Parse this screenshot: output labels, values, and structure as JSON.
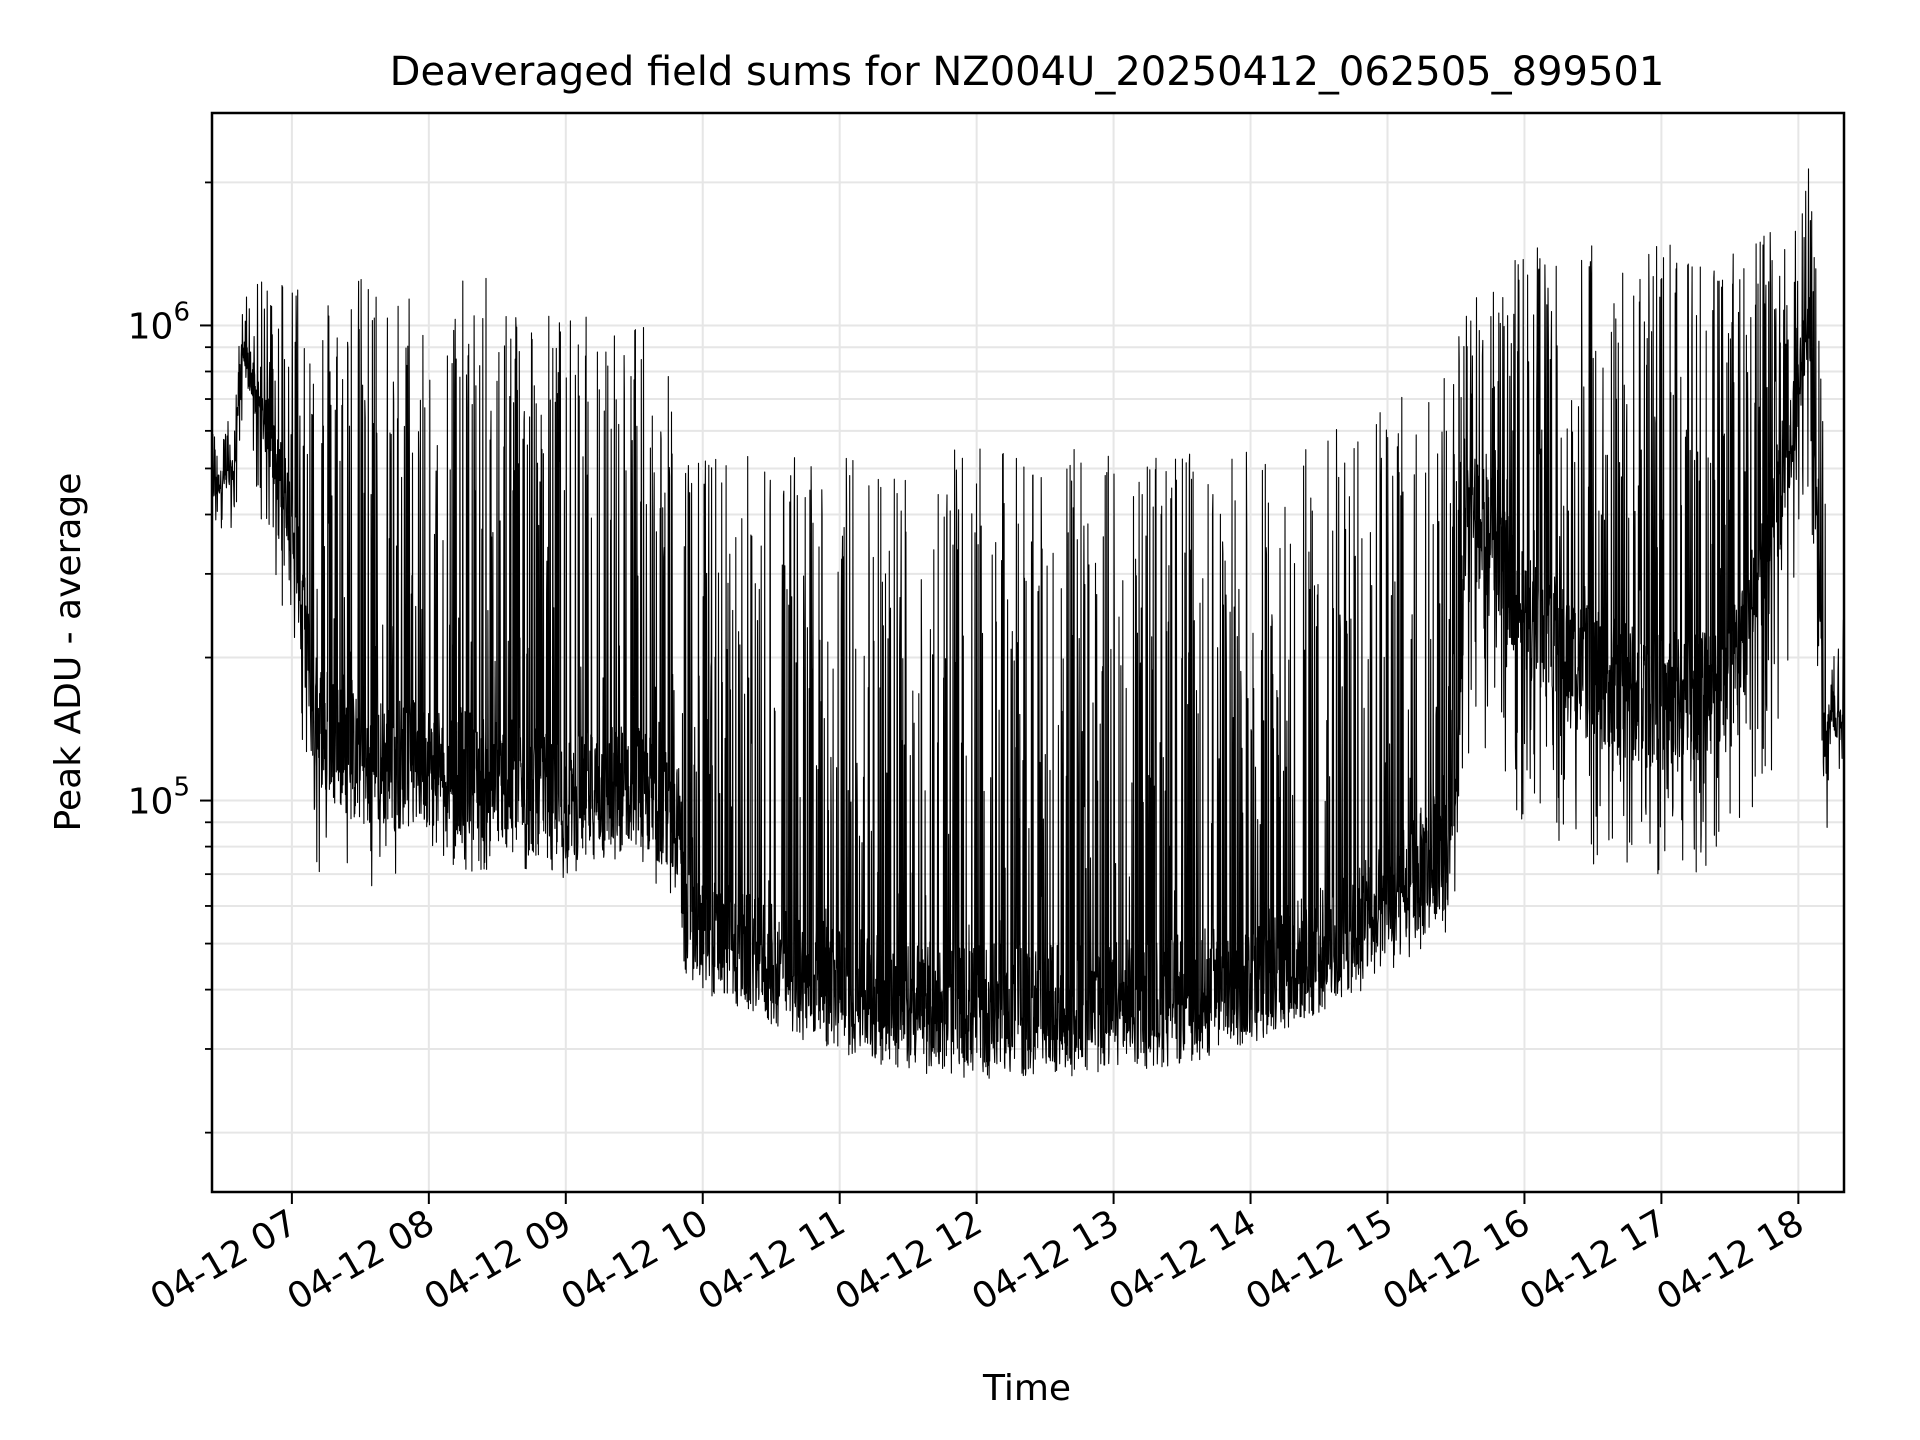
{
  "chart_data": {
    "type": "line",
    "title": "Deaveraged field sums for NZ004U_20250412_062505_899501",
    "xlabel": "Time",
    "ylabel": "Peak ADU - average",
    "yscale": "log",
    "xlim": [
      "2025-04-12 06:25",
      "2025-04-12 18:20"
    ],
    "ylim": [
      15000,
      2800000
    ],
    "grid": true,
    "legend": "none",
    "line_color": "#000000",
    "x_ticks": [
      "04-12 07",
      "04-12 08",
      "04-12 09",
      "04-12 10",
      "04-12 11",
      "04-12 12",
      "04-12 13",
      "04-12 14",
      "04-12 15",
      "04-12 16",
      "04-12 17",
      "04-12 18"
    ],
    "y_ticks": [
      {
        "value": 100000,
        "base": "10",
        "exp": "5"
      },
      {
        "value": 1000000,
        "base": "10",
        "exp": "6"
      }
    ],
    "series": [
      {
        "x": [
          "2025-04-12 06:25",
          "2025-04-12 06:35",
          "2025-04-12 06:38",
          "2025-04-12 07:00",
          "2025-04-12 07:10",
          "2025-04-12 07:30",
          "2025-04-12 08:00",
          "2025-04-12 08:30",
          "2025-04-12 09:00",
          "2025-04-12 09:30",
          "2025-04-12 09:50",
          "2025-04-12 09:52",
          "2025-04-12 10:30",
          "2025-04-12 11:00",
          "2025-04-12 11:30",
          "2025-04-12 12:00",
          "2025-04-12 12:30",
          "2025-04-12 13:00",
          "2025-04-12 13:30",
          "2025-04-12 14:00",
          "2025-04-12 14:30",
          "2025-04-12 15:00",
          "2025-04-12 15:30",
          "2025-04-12 15:35",
          "2025-04-12 16:00",
          "2025-04-12 16:30",
          "2025-04-12 17:00",
          "2025-04-12 17:30",
          "2025-04-12 17:50",
          "2025-04-12 18:05",
          "2025-04-12 18:12",
          "2025-04-12 18:14",
          "2025-04-12 18:20"
        ],
        "low": [
          350000,
          380000,
          600000,
          200000,
          70000,
          65000,
          72000,
          70000,
          68000,
          70000,
          60000,
          42000,
          36000,
          32000,
          29000,
          28000,
          28000,
          29000,
          30000,
          32000,
          36000,
          42000,
          55000,
          110000,
          90000,
          72000,
          70000,
          70000,
          100000,
          500000,
          65000,
          130000,
          110000
        ],
        "high": [
          600000,
          650000,
          1150000,
          1400000,
          1200000,
          1300000,
          1200000,
          1300000,
          1050000,
          1100000,
          700000,
          550000,
          550000,
          550000,
          550000,
          550000,
          550000,
          550000,
          550000,
          550000,
          600000,
          700000,
          900000,
          1100000,
          1500000,
          1500000,
          1500000,
          1500000,
          1600000,
          2300000,
          600000,
          180000,
          280000
        ],
        "typical": [
          450000,
          500000,
          900000,
          400000,
          150000,
          120000,
          120000,
          110000,
          100000,
          110000,
          90000,
          55000,
          45000,
          40000,
          37000,
          36000,
          36000,
          37000,
          38000,
          42000,
          48000,
          60000,
          85000,
          450000,
          250000,
          180000,
          160000,
          180000,
          400000,
          1000000,
          120000,
          150000,
          140000
        ]
      }
    ]
  }
}
